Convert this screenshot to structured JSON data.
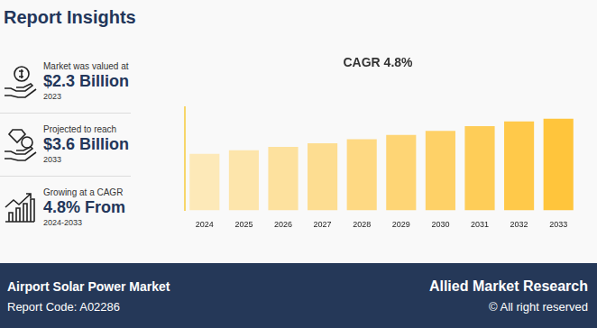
{
  "header": {
    "title": "Report Insights"
  },
  "insights": [
    {
      "label": "Market was valued at",
      "value": "$2.3 Billion",
      "note": "2023"
    },
    {
      "label": "Projected to reach",
      "value": "$3.6 Billion",
      "note": "2033"
    },
    {
      "label": "Growing at a CAGR",
      "value": "4.8% From",
      "note": "2024-2033"
    }
  ],
  "footer": {
    "market": "Airport Solar Power Market",
    "code": "Report Code: A02286",
    "brand": "Allied Market Research",
    "rights": "© All right reserved"
  },
  "chart_data": {
    "type": "bar",
    "title": "CAGR 4.8%",
    "categories": [
      "2024",
      "2025",
      "2026",
      "2027",
      "2028",
      "2029",
      "2030",
      "2031",
      "2032",
      "2033"
    ],
    "values": [
      2.41,
      2.53,
      2.65,
      2.77,
      2.91,
      3.05,
      3.19,
      3.35,
      3.51,
      3.6
    ],
    "colors": [
      "#fde9b8",
      "#fde5ab",
      "#fde19e",
      "#fddd91",
      "#fed983",
      "#fed575",
      "#fed167",
      "#fecd58",
      "#ffc94a",
      "#ffc53c"
    ],
    "ylim": [
      0.5,
      4
    ],
    "grid": false,
    "tick_labels": "x"
  }
}
